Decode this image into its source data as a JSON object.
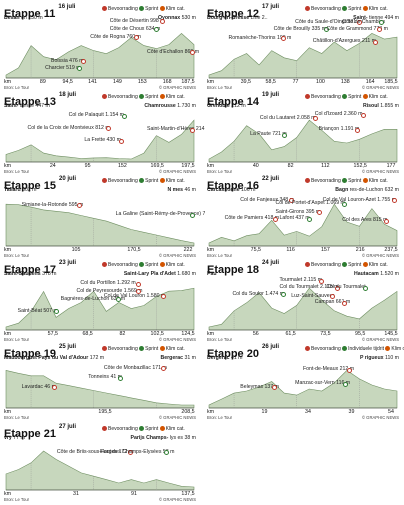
{
  "legend": {
    "climb": "Bevoorrading",
    "sprint": "Sprint",
    "cat": "Klim cat.",
    "feed": "Individuele tijdrit"
  },
  "source": "Bron: Le Tour",
  "credit": "© GRAPHIC NEWS",
  "colors": {
    "profile": "#c7d7bd",
    "profileEdge": "#6f8f62",
    "accent": "#c0392b",
    "sprint": "#2e7d32"
  },
  "chart_data": [
    {
      "type": "area",
      "title": "Etappe 11",
      "date": "16 juli",
      "legend": [
        "Bevoorrading",
        "Sprint",
        "Klim cat."
      ],
      "start": "Besan",
      "start_elev": "on 230 m",
      "finish": "Oyonnax",
      "finish_elev": "530 m",
      "x_ticks": [
        "0",
        "89",
        "94,5",
        "141",
        "149",
        "153",
        "168",
        "187,5"
      ],
      "y": [
        230,
        300,
        520,
        410,
        380,
        460,
        520,
        470,
        440,
        500,
        600,
        520,
        490,
        530,
        640,
        530
      ],
      "labels": [
        "Côte de Désertin 998 m",
        "Côte de Choux 634 m",
        "Côte de Rogna 760 m",
        "Boissia 476 m",
        "Charcier 519 m",
        "Côte d'Echallon 869 m"
      ]
    },
    {
      "type": "area",
      "title": "Etappe 12",
      "date": "17 juli",
      "legend": [
        "Bevoorrading",
        "Sprint",
        "Klim cat."
      ],
      "start": "Bourg-en-Bresse",
      "start_elev": "Line 2..",
      "finish": "Saint-",
      "finish_elev": "tienne 494 m",
      "x_ticks": [
        "0",
        "39,5",
        "58,5",
        "77",
        "100",
        "138",
        "164",
        "185,5"
      ],
      "y": [
        230,
        260,
        340,
        380,
        300,
        400,
        350,
        330,
        420,
        380,
        460,
        400,
        450,
        520,
        480,
        494
      ],
      "labels": [
        "Côte du Saule-d'Oingt 531 m",
        "Côte de Brouilly 335 m",
        "Côte de Grammond 778 m",
        "Romanèche-Thorins 199 m",
        "Côte de Chambles",
        "Châtillon-d'Azergues 211 m"
      ]
    },
    {
      "type": "area",
      "title": "Etappe 13",
      "date": "18 juli",
      "legend": [
        "Bevoorrading",
        "Sprint",
        "Klim cat."
      ],
      "start": "Saint-",
      "start_elev": "tienne 447 m",
      "finish": "Chamrousse",
      "finish_elev": "1.730 m",
      "x_ticks": [
        "0",
        "24",
        "95",
        "152",
        "169,5",
        "197,5"
      ],
      "y": [
        447,
        600,
        812,
        500,
        400,
        350,
        300,
        320,
        330,
        300,
        280,
        500,
        1154,
        900,
        1200,
        1730
      ],
      "labels": [
        "Col de la Croix de Montvieux 812 m",
        "Col de Palaquit 1.154 m",
        "La Frette 430 m",
        "Saint-Martin-d'Hères 214 m"
      ]
    },
    {
      "type": "area",
      "title": "Etappe 14",
      "date": "19 juli",
      "legend": [
        "Bevoorrading",
        "Sprint",
        "Klim cat."
      ],
      "start": "Grenoble",
      "start_elev": "212 m",
      "finish": "Risoul",
      "finish_elev": "1.855 m",
      "x_ticks": [
        "0",
        "40",
        "82",
        "112",
        "152,5",
        "177"
      ],
      "y": [
        212,
        600,
        1200,
        2058,
        1600,
        721,
        900,
        1400,
        2360,
        1800,
        1191,
        1100,
        1300,
        1600,
        1855,
        1855
      ],
      "labels": [
        "Col du Lautaret 2.058 m",
        "La Paute 721 m",
        "Col d'Izoard 2.360 m",
        "Briançon 1.191 m"
      ]
    },
    {
      "type": "area",
      "title": "Etappe 15",
      "date": "20 juli",
      "legend": [
        "Bevoorrading",
        "Sprint",
        "Klim cat."
      ],
      "start": "Tallard",
      "start_elev": "602 m",
      "finish": "N mes",
      "finish_elev": "46 m",
      "x_ticks": [
        "0",
        "105",
        "170,5",
        "222"
      ],
      "y": [
        602,
        595,
        560,
        520,
        500,
        480,
        440,
        400,
        360,
        300,
        240,
        200,
        160,
        120,
        80,
        46
      ],
      "labels": [
        "Simiane-la-Rotonde 595 m",
        "La Galine (Saint-Rémy-de-Provence) 70 m"
      ]
    },
    {
      "type": "area",
      "title": "Etappe 16",
      "date": "22 juli",
      "legend": [
        "Bevoorrading",
        "Sprint",
        "Klim cat."
      ],
      "start": "Carcassonne",
      "start_elev": "106 m",
      "finish": "Bagn",
      "finish_elev": "res-de-Luchon 632 m",
      "x_ticks": [
        "0",
        "75,5",
        "116",
        "157",
        "216",
        "237,5"
      ],
      "y": [
        106,
        348,
        200,
        418,
        500,
        1069,
        437,
        600,
        395,
        800,
        1755,
        1000,
        815,
        1569,
        900,
        632
      ],
      "labels": [
        "Col de Fanjeaux 348 m",
        "Col de Portet-d'Aspet 1.069 m",
        "Col de Val Louron-Azet 1.755 m",
        "Côte de Pamiers 418 m",
        "Lafont 437 m",
        "Saint-Girons 395 m",
        "Col des Ares 815 m"
      ]
    },
    {
      "type": "area",
      "title": "Etappe 17",
      "date": "23 juli",
      "legend": [
        "Bevoorrading",
        "Sprint",
        "Klim cat."
      ],
      "start": "Saint-Gaudens",
      "start_elev": "378 m",
      "finish": "Saint-Lary Pla d'Adet",
      "finish_elev": "1.680 m",
      "x_ticks": [
        "0",
        "57,5",
        "68,5",
        "82",
        "102,5",
        "124,5"
      ],
      "y": [
        378,
        507,
        900,
        1569,
        700,
        1000,
        1200,
        1580,
        900,
        1200,
        1000,
        1100,
        1400,
        1580,
        1600,
        1680
      ],
      "labels": [
        "Col du Portillon 1.292 m",
        "Bagnères-de-Luchon 630 m",
        "Col de Peyresourde 1.569 m",
        "Col de Val Louron 1.580 m",
        "Saint-Béat 507 m"
      ]
    },
    {
      "type": "area",
      "title": "Etappe 18",
      "date": "24 juli",
      "legend": [
        "Bevoorrading",
        "Sprint",
        "Klim cat."
      ],
      "start": "Pau",
      "start_elev": "",
      "finish": "Hautacam",
      "finish_elev": "1.520 m",
      "x_ticks": [
        "0",
        "56",
        "61,5",
        "73,5",
        "95,5",
        "145,5"
      ],
      "y": [
        200,
        300,
        800,
        1100,
        1474,
        900,
        700,
        1000,
        1640,
        1200,
        800,
        600,
        500,
        900,
        1200,
        1520
      ],
      "labels": [
        "Col du Tourmalet 2.115 m",
        "Col du Soulor 1.474 m",
        "Tourmalet 2.115 m",
        "Campan 661 m",
        "Col du Tourmalet",
        "Luz-Saint-Sauveur"
      ]
    },
    {
      "type": "area",
      "title": "Etappe 19",
      "date": "25 juli",
      "legend": [
        "Bevoorrading",
        "Sprint",
        "Klim cat."
      ],
      "start": "Maubourguet Pays du Val d'Adour",
      "start_elev": "172 m",
      "finish": "Bergerac",
      "finish_elev": "31 m",
      "x_ticks": [
        "0",
        "195,5",
        "208,5"
      ],
      "y": [
        172,
        160,
        150,
        150,
        120,
        110,
        100,
        90,
        80,
        70,
        60,
        50,
        40,
        35,
        31,
        31
      ],
      "labels": [
        "Côte de Monbazillac 171 m",
        "Tonneins 41 m",
        "Lavardac 46 m"
      ]
    },
    {
      "type": "area",
      "title": "Etappe 20",
      "date": "26 juli",
      "legend": [
        "Bevoorrading",
        "Individuele tijdrit",
        "Klim cat."
      ],
      "start": "Bergerac",
      "start_elev": "41 m",
      "finish": "P rigueux",
      "finish_elev": "110 m",
      "x_ticks": [
        "0",
        "19",
        "34",
        "39",
        "54"
      ],
      "y": [
        41,
        70,
        100,
        110,
        130,
        157,
        100,
        90,
        120,
        110,
        150,
        212,
        170,
        140,
        120,
        110
      ],
      "labels": [
        "Font-de-Meaux 212 m",
        "Manzac-sur-Vern 116 m",
        "Beleymas 137 m"
      ]
    },
    {
      "type": "area",
      "title": "Etappe 21",
      "date": "27 juli",
      "legend": [
        "Bevoorrading",
        "Sprint",
        "Klim cat."
      ],
      "start": "vry",
      "start_elev": "77 m",
      "finish": "Parijs Champs-",
      "finish_elev": "lys es 38 m",
      "x_ticks": [
        "0",
        "31",
        "91",
        "137,5"
      ],
      "y": [
        77,
        90,
        110,
        145,
        120,
        100,
        80,
        70,
        60,
        50,
        60,
        50,
        60,
        50,
        40,
        38
      ],
      "labels": [
        "Côte de Briis-sous-Forges 172 m",
        "Haut des Champs-Elysées 53 m"
      ]
    }
  ]
}
